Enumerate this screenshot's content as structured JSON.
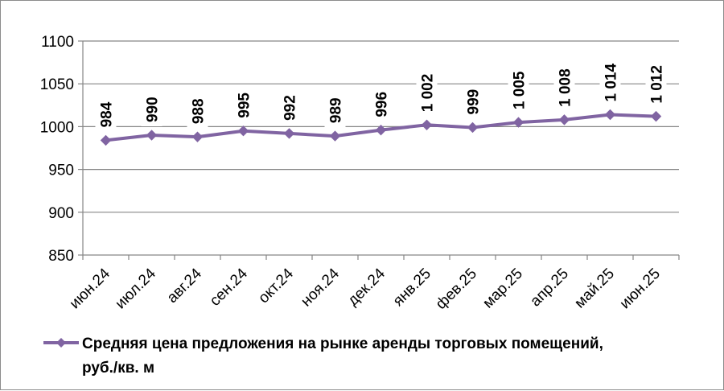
{
  "chart_data": {
    "type": "line",
    "categories": [
      "июн.24",
      "июл.24",
      "авг.24",
      "сен.24",
      "окт.24",
      "ноя.24",
      "дек.24",
      "янв.25",
      "фев.25",
      "мар.25",
      "апр.25",
      "май.25",
      "июн.25"
    ],
    "series": [
      {
        "name": "Средняя цена предложения на рынке аренды торговых помещений, руб./кв. м",
        "values": [
          984,
          990,
          988,
          995,
          992,
          989,
          996,
          1002,
          999,
          1005,
          1008,
          1014,
          1012
        ],
        "labels": [
          "984",
          "990",
          "988",
          "995",
          "992",
          "989",
          "996",
          "1 002",
          "999",
          "1 005",
          "1 008",
          "1 014",
          "1 012"
        ]
      }
    ],
    "title": "",
    "xlabel": "",
    "ylabel": "",
    "ylim": [
      850,
      1100
    ],
    "yticks": [
      "850",
      "900",
      "950",
      "1000",
      "1050",
      "1100"
    ],
    "grid": true,
    "legend_position": "bottom",
    "legend_lines": [
      "Средняя цена предложения на рынке аренды торговых помещений,",
      "руб./кв. м"
    ],
    "colors": {
      "series": "#8064a2",
      "grid": "#868686",
      "axis": "#868686",
      "label_bg": "#ffffff"
    }
  }
}
